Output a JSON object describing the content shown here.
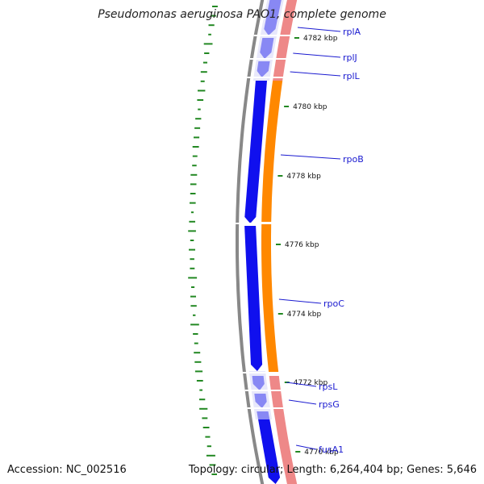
{
  "title": "Pseudomonas aeruginosa PAO1, complete genome",
  "footer": {
    "accession": "Accession: NC_002516",
    "topology": "Topology: circular; Length: 6,264,404 bp; Genes: 5,646"
  },
  "colors": {
    "backbone": "#888888",
    "cds_blue": "#1010ee",
    "cds_orange": "#ff8800",
    "rna_pink": "#ee8888",
    "label_blue": "#1a1ad0",
    "gc_green": "#228822"
  },
  "scale_ticks": [
    {
      "label": "4782 kbp"
    },
    {
      "label": "4780 kbp"
    },
    {
      "label": "4778 kbp"
    },
    {
      "label": "4776 kbp"
    },
    {
      "label": "4774 kbp"
    },
    {
      "label": "4772 kbp"
    },
    {
      "label": "4770 kbp"
    }
  ],
  "genes": [
    {
      "name": "rplA"
    },
    {
      "name": "rplJ"
    },
    {
      "name": "rplL"
    },
    {
      "name": "rpoB"
    },
    {
      "name": "rpoC"
    },
    {
      "name": "rpsL"
    },
    {
      "name": "rpsG"
    },
    {
      "name": "fusA1"
    }
  ]
}
